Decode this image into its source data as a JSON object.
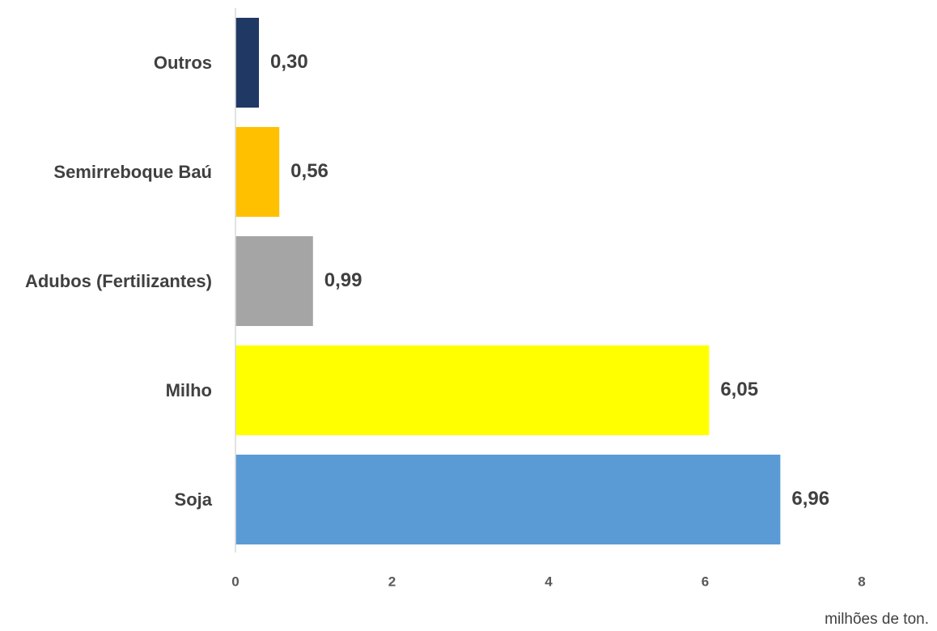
{
  "chart_data": {
    "type": "bar",
    "orientation": "horizontal",
    "categories": [
      "Outros",
      "Semirreboque Baú",
      "Adubos (Fertilizantes)",
      "Milho",
      "Soja"
    ],
    "values": [
      0.3,
      0.56,
      0.99,
      6.05,
      6.96
    ],
    "value_labels": [
      "0,30",
      "0,56",
      "0,99",
      "6,05",
      "6,96"
    ],
    "colors": [
      "#203864",
      "#ffc000",
      "#a5a5a5",
      "#ffff00",
      "#5b9bd5"
    ],
    "xlim": [
      0,
      8
    ],
    "xticks": [
      0,
      2,
      4,
      6,
      8
    ],
    "x_label": "milhões de ton."
  }
}
